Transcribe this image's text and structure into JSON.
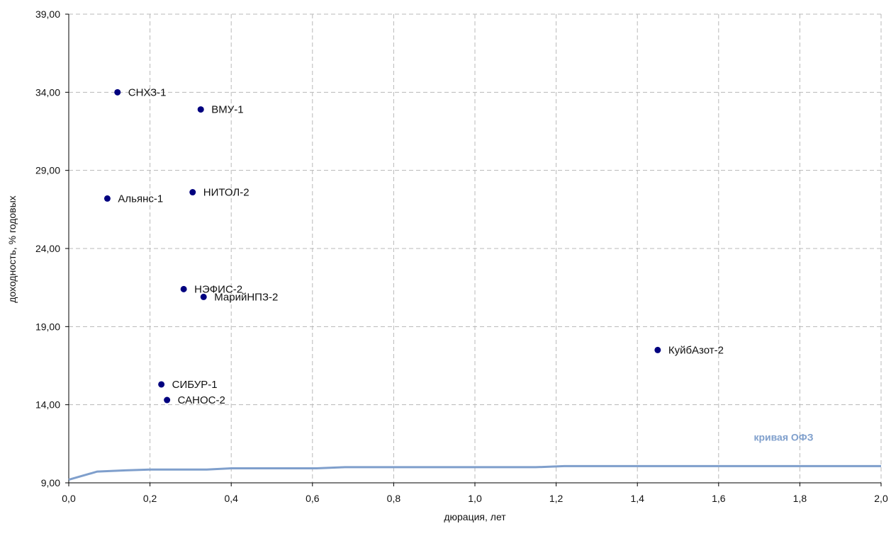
{
  "chart_data": {
    "type": "scatter",
    "title": "",
    "xlabel": "дюрация, лет",
    "ylabel": "доходность, % годовых",
    "xlim": [
      0,
      2
    ],
    "ylim": [
      9,
      39
    ],
    "grid": true,
    "x_ticks": [
      "0,0",
      "0,2",
      "0,4",
      "0,6",
      "0,8",
      "1,0",
      "1,2",
      "1,4",
      "1,6",
      "1,8",
      "2,0"
    ],
    "y_ticks": [
      "9,00",
      "14,00",
      "19,00",
      "24,00",
      "29,00",
      "34,00",
      "39,00"
    ],
    "points": [
      {
        "label": "СНХЗ-1",
        "x": 0.12,
        "y": 34.0
      },
      {
        "label": "ВМУ-1",
        "x": 0.325,
        "y": 32.9
      },
      {
        "label": "НИТОЛ-2",
        "x": 0.305,
        "y": 27.6
      },
      {
        "label": "Альянс-1",
        "x": 0.095,
        "y": 27.2
      },
      {
        "label": "НЭФИС-2",
        "x": 0.283,
        "y": 21.4
      },
      {
        "label": "МарийНПЗ-2",
        "x": 0.332,
        "y": 20.9
      },
      {
        "label": "КуйбАзот-2",
        "x": 1.45,
        "y": 17.5
      },
      {
        "label": "СИБУР-1",
        "x": 0.228,
        "y": 15.3
      },
      {
        "label": "САНОС-2",
        "x": 0.242,
        "y": 14.3
      }
    ],
    "curve": {
      "name": "кривая ОФЗ",
      "color": "#7f9fcc",
      "x": [
        0.0,
        0.07,
        0.14,
        0.2,
        0.34,
        0.4,
        0.61,
        0.68,
        1.15,
        1.22,
        2.0
      ],
      "y": [
        9.2,
        9.72,
        9.8,
        9.85,
        9.85,
        9.93,
        9.93,
        10.0,
        10.0,
        10.07,
        10.07
      ]
    },
    "point_color": "#00007f"
  }
}
